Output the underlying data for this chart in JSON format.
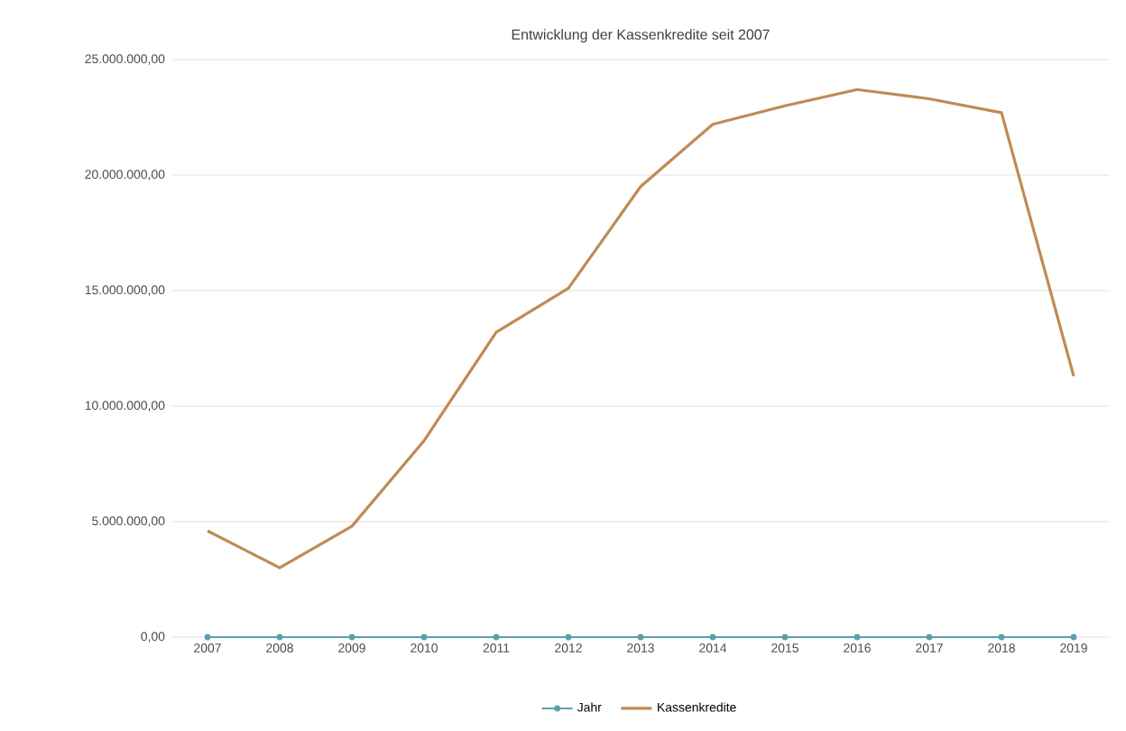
{
  "chart_data": {
    "type": "line",
    "title": "Entwicklung der Kassenkredite seit 2007",
    "categories": [
      "2007",
      "2008",
      "2009",
      "2010",
      "2011",
      "2012",
      "2013",
      "2014",
      "2015",
      "2016",
      "2017",
      "2018",
      "2019"
    ],
    "series": [
      {
        "name": "Jahr",
        "color": "#5b9fb0",
        "marker": "circle",
        "values": [
          0,
          0,
          0,
          0,
          0,
          0,
          0,
          0,
          0,
          0,
          0,
          0,
          0
        ]
      },
      {
        "name": "Kassenkredite",
        "color": "#c08a55",
        "values": [
          4600000,
          3000000,
          4800000,
          8500000,
          13200000,
          15100000,
          19500000,
          22200000,
          23000000,
          23700000,
          23300000,
          22700000,
          11300000
        ]
      }
    ],
    "ylim": [
      0,
      25000000
    ],
    "yticks": [
      {
        "value": 0,
        "label": "0,00"
      },
      {
        "value": 5000000,
        "label": "5.000.000,00"
      },
      {
        "value": 10000000,
        "label": "10.000.000,00"
      },
      {
        "value": 15000000,
        "label": "15.000.000,00"
      },
      {
        "value": 20000000,
        "label": "20.000.000,00"
      },
      {
        "value": 25000000,
        "label": "25.000.000,00"
      }
    ],
    "grid": "y",
    "legend": "bottom"
  }
}
